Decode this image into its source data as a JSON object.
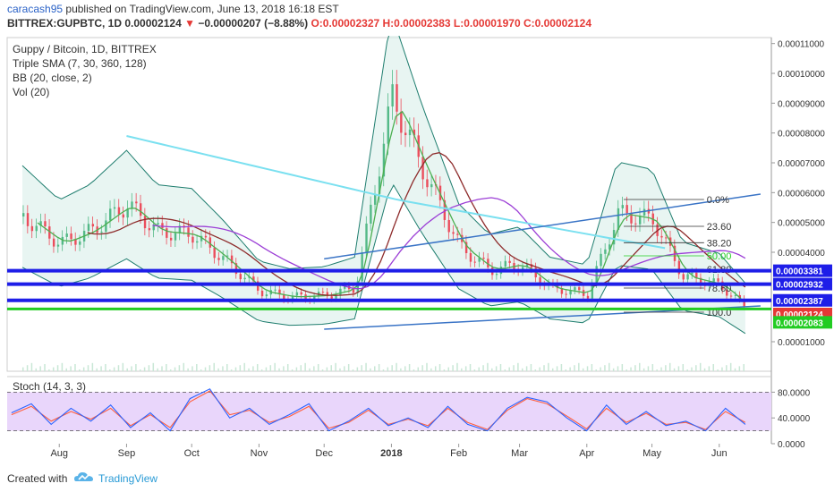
{
  "header": {
    "author": "caracash95",
    "published_text": "published on TradingView.com, June 13, 2018 16:18 EST",
    "symbol_line_left": "BITTREX:GUPBTC, 1D 0.00002124",
    "change_text": "−0.00000207 (−8.88%)",
    "ohlc_text": "O:0.00002327 H:0.00002383 L:0.00001970 C:0.00002124",
    "change_arrow": "▼"
  },
  "legend": {
    "title": "Guppy / Bitcoin, 1D, BITTREX",
    "items": [
      "Triple SMA (7, 30, 360, 128)",
      "BB (20, close, 2)",
      "Vol (20)"
    ]
  },
  "stoch_label": "Stoch (14, 3, 3)",
  "footer": {
    "created_with": "Created with",
    "brand": "TradingView"
  },
  "colors": {
    "up": "#53b987",
    "down": "#eb4d5c",
    "sma7": "#4caf50",
    "sma30": "#8e2c2c",
    "sma360": "#7ae0f0",
    "sma128": "#9c3fd6",
    "bb": "#1e7d6e",
    "blue_line": "#1e1ee8",
    "green_line": "#22cc22",
    "trend": "#3a74c6",
    "stoch_k": "#2962ff",
    "stoch_d": "#ff5f3f",
    "stoch_bg": "#e9d6fb"
  },
  "chart_data": {
    "type": "candlestick",
    "title": "Guppy / Bitcoin, 1D, BITTREX",
    "x_tick_labels": [
      "Aug",
      "Sep",
      "Oct",
      "Nov",
      "Dec",
      "2018",
      "Feb",
      "Mar",
      "Apr",
      "May",
      "Jun"
    ],
    "y_axis": {
      "tick_labels": [
        "0.00011000",
        "0.00010000",
        "0.00009000",
        "0.00008000",
        "0.00007000",
        "0.00006000",
        "0.00005000",
        "0.00004000",
        "0.00001000"
      ],
      "ylim": [
        1e-07,
        0.000112
      ]
    },
    "price_series_approx": {
      "dates": [
        "2017-07-15",
        "2017-08-01",
        "2017-08-15",
        "2017-09-01",
        "2017-09-15",
        "2017-10-01",
        "2017-10-15",
        "2017-11-01",
        "2017-11-15",
        "2017-12-01",
        "2017-12-15",
        "2018-01-01",
        "2018-01-15",
        "2018-02-01",
        "2018-02-15",
        "2018-03-01",
        "2018-03-15",
        "2018-04-01",
        "2018-04-15",
        "2018-05-01",
        "2018-05-15",
        "2018-06-01",
        "2018-06-13"
      ],
      "close": [
        5.2e-05,
        4.3e-05,
        4.7e-05,
        5.6e-05,
        4.7e-05,
        4.6e-05,
        3.8e-05,
        2.7e-05,
        2.5e-05,
        2.55e-05,
        2.8e-05,
        9.2e-05,
        6.8e-05,
        4.2e-05,
        3.4e-05,
        3.6e-05,
        2.8e-05,
        2.6e-05,
        5.3e-05,
        5.1e-05,
        3.2e-05,
        2.9e-05,
        2.12e-05
      ]
    },
    "horizontal_levels": [
      {
        "label": "0.00003381",
        "value": 3.381e-05,
        "color": "#1e1ee8"
      },
      {
        "label": "0.00002932",
        "value": 2.932e-05,
        "color": "#1e1ee8"
      },
      {
        "label": "0.00002387",
        "value": 2.387e-05,
        "color": "#1e1ee8"
      },
      {
        "label": "0.00002124",
        "value": 2.124e-05,
        "color": "#e53935"
      },
      {
        "label": "0.00002083",
        "value": 2.083e-05,
        "color": "#22cc22"
      }
    ],
    "fibonacci": {
      "levels": [
        {
          "label": "0.0%",
          "value": 5.77e-05
        },
        {
          "label": "23.60",
          "value": 4.87e-05
        },
        {
          "label": "38.20",
          "value": 4.32e-05
        },
        {
          "label": "50.00",
          "value": 3.88e-05
        },
        {
          "label": "61.80",
          "value": 3.43e-05
        },
        {
          "label": "78.60",
          "value": 2.8e-05
        },
        {
          "label": "100.0",
          "value": 1.99e-05
        }
      ]
    },
    "trend_lines": [
      {
        "from": [
          "2017-12-01",
          3.78e-05
        ],
        "to": [
          "2018-06-20",
          5.95e-05
        ]
      },
      {
        "from": [
          "2017-12-01",
          1.42e-05
        ],
        "to": [
          "2018-06-20",
          2.2e-05
        ]
      }
    ],
    "stoch": {
      "label": "Stoch (14, 3, 3)",
      "tick_labels": [
        "80.0000",
        "40.0000",
        "0.0000"
      ],
      "band": [
        20,
        80
      ],
      "k": [
        48,
        62,
        30,
        55,
        35,
        60,
        25,
        48,
        20,
        70,
        85,
        40,
        55,
        30,
        45,
        62,
        20,
        35,
        55,
        28,
        40,
        25,
        58,
        30,
        20,
        55,
        72,
        65,
        40,
        20,
        60,
        30,
        50,
        28,
        35,
        20,
        55,
        30
      ],
      "d": [
        45,
        58,
        35,
        50,
        38,
        55,
        28,
        45,
        25,
        65,
        82,
        45,
        52,
        33,
        42,
        58,
        24,
        33,
        52,
        30,
        38,
        28,
        55,
        33,
        22,
        52,
        70,
        62,
        43,
        23,
        55,
        33,
        47,
        30,
        33,
        22,
        50,
        33
      ]
    }
  }
}
